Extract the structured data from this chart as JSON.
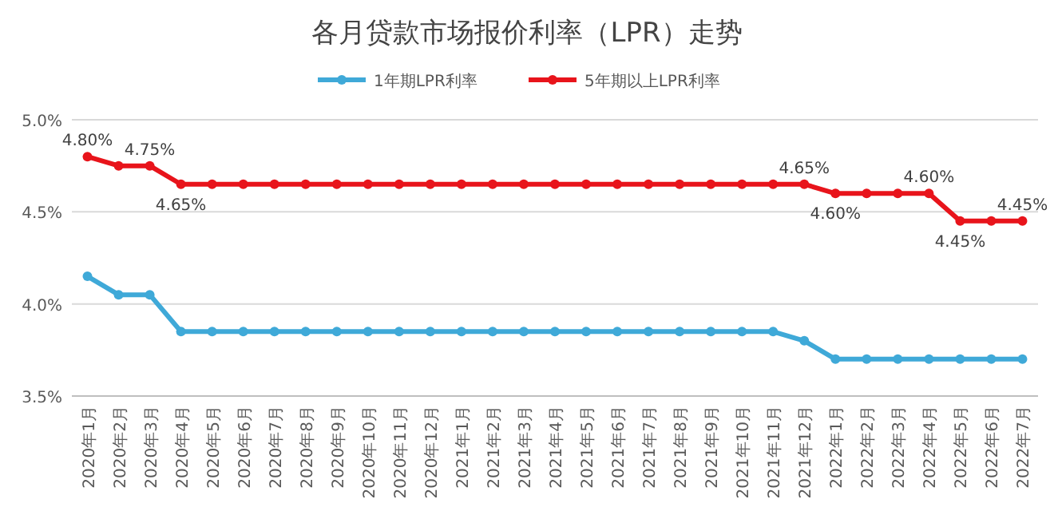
{
  "chart_data": {
    "type": "line",
    "title": "各月贷款市场报价利率（LPR）走势",
    "categories": [
      "2020年1月",
      "2020年2月",
      "2020年3月",
      "2020年4月",
      "2020年5月",
      "2020年6月",
      "2020年7月",
      "2020年8月",
      "2020年9月",
      "2020年10月",
      "2020年11月",
      "2020年12月",
      "2021年1月",
      "2021年2月",
      "2021年3月",
      "2021年4月",
      "2021年5月",
      "2021年6月",
      "2021年7月",
      "2021年8月",
      "2021年9月",
      "2021年10月",
      "2021年11月",
      "2021年12月",
      "2022年1月",
      "2022年2月",
      "2022年3月",
      "2022年4月",
      "2022年5月",
      "2022年6月",
      "2022年7月"
    ],
    "series": [
      {
        "name": "1年期LPR利率",
        "color": "#3fa9d8",
        "values": [
          4.15,
          4.05,
          4.05,
          3.85,
          3.85,
          3.85,
          3.85,
          3.85,
          3.85,
          3.85,
          3.85,
          3.85,
          3.85,
          3.85,
          3.85,
          3.85,
          3.85,
          3.85,
          3.85,
          3.85,
          3.85,
          3.85,
          3.85,
          3.8,
          3.7,
          3.7,
          3.7,
          3.7,
          3.7,
          3.7,
          3.7
        ]
      },
      {
        "name": "5年期以上LPR利率",
        "color": "#e8141b",
        "values": [
          4.8,
          4.75,
          4.75,
          4.65,
          4.65,
          4.65,
          4.65,
          4.65,
          4.65,
          4.65,
          4.65,
          4.65,
          4.65,
          4.65,
          4.65,
          4.65,
          4.65,
          4.65,
          4.65,
          4.65,
          4.65,
          4.65,
          4.65,
          4.65,
          4.6,
          4.6,
          4.6,
          4.6,
          4.45,
          4.45,
          4.45
        ],
        "value_labels": [
          "4.80%",
          null,
          "4.75%",
          "4.65%",
          null,
          null,
          null,
          null,
          null,
          null,
          null,
          null,
          null,
          null,
          null,
          null,
          null,
          null,
          null,
          null,
          null,
          null,
          null,
          "4.65%",
          "4.60%",
          null,
          null,
          "4.60%",
          "4.45%",
          null,
          "4.45%"
        ]
      }
    ],
    "ylim": [
      3.5,
      5.0
    ],
    "yticks": [
      {
        "value": 3.5,
        "label": "3.5%"
      },
      {
        "value": 4.0,
        "label": "4.0%"
      },
      {
        "value": 4.5,
        "label": "4.5%"
      },
      {
        "value": 5.0,
        "label": "5.0%"
      }
    ],
    "grid": "y",
    "legend": "top",
    "marker": "circle",
    "line_style": "solid"
  }
}
